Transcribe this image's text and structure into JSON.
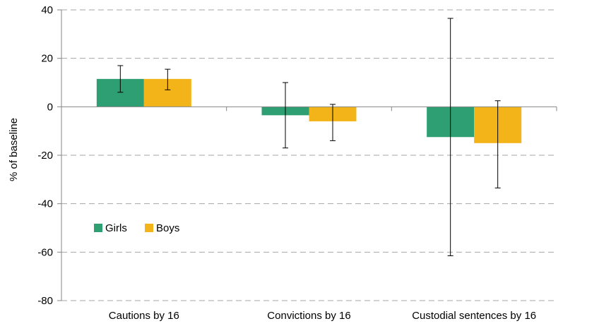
{
  "chart_data": {
    "type": "bar",
    "title": "",
    "xlabel": "",
    "ylabel": "% of baseline",
    "ylim": [
      -80,
      40
    ],
    "yticks": [
      40,
      20,
      0,
      -20,
      -40,
      -60,
      -80
    ],
    "grid": true,
    "legend_position": "middle-left",
    "categories": [
      "Cautions by 16",
      "Convictions by 16",
      "Custodial sentences by 16"
    ],
    "series": [
      {
        "name": "Girls",
        "color": "#2e9e73",
        "values": [
          11.5,
          -3.5,
          -12.5
        ],
        "error_low": [
          6,
          -17,
          -61.5
        ],
        "error_high": [
          17,
          10,
          36.5
        ]
      },
      {
        "name": "Boys",
        "color": "#f2b418",
        "values": [
          11.5,
          -6,
          -15
        ],
        "error_low": [
          7,
          -14,
          -33.5
        ],
        "error_high": [
          15.5,
          1,
          2.5
        ]
      }
    ]
  }
}
